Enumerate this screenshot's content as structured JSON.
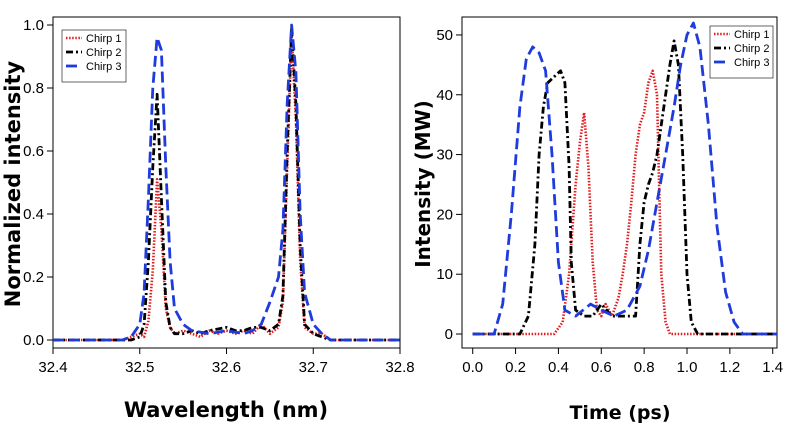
{
  "chart_data": [
    {
      "type": "line",
      "title": "",
      "xlabel": "Wavelength (nm)",
      "ylabel": "Normalized intensity",
      "xlim": [
        32.4,
        32.8
      ],
      "ylim": [
        0,
        1.0
      ],
      "xticks": [
        "32.4",
        "32.5",
        "32.6",
        "32.7",
        "32.8"
      ],
      "yticks": [
        "0.0",
        "0.2",
        "0.4",
        "0.6",
        "0.8",
        "1.0"
      ],
      "legend_position": "top-left",
      "grid": false,
      "series": [
        {
          "name": "Chirp 1",
          "color": "#e41a1c",
          "dash": "dotted",
          "points": [
            [
              32.4,
              0.0
            ],
            [
              32.48,
              0.0
            ],
            [
              32.49,
              0.01
            ],
            [
              32.5,
              0.02
            ],
            [
              32.505,
              0.01
            ],
            [
              32.51,
              0.06
            ],
            [
              32.515,
              0.22
            ],
            [
              32.52,
              0.51
            ],
            [
              32.525,
              0.35
            ],
            [
              32.53,
              0.1
            ],
            [
              32.535,
              0.04
            ],
            [
              32.54,
              0.02
            ],
            [
              32.55,
              0.03
            ],
            [
              32.56,
              0.02
            ],
            [
              32.57,
              0.01
            ],
            [
              32.58,
              0.03
            ],
            [
              32.59,
              0.02
            ],
            [
              32.6,
              0.03
            ],
            [
              32.61,
              0.02
            ],
            [
              32.62,
              0.03
            ],
            [
              32.63,
              0.02
            ],
            [
              32.64,
              0.05
            ],
            [
              32.65,
              0.02
            ],
            [
              32.66,
              0.04
            ],
            [
              32.665,
              0.12
            ],
            [
              32.67,
              0.55
            ],
            [
              32.675,
              0.97
            ],
            [
              32.68,
              0.7
            ],
            [
              32.685,
              0.25
            ],
            [
              32.69,
              0.04
            ],
            [
              32.7,
              0.02
            ],
            [
              32.71,
              0.02
            ],
            [
              32.72,
              0.0
            ],
            [
              32.8,
              0.0
            ]
          ]
        },
        {
          "name": "Chirp 2",
          "color": "#000000",
          "dash": "dashdot",
          "points": [
            [
              32.4,
              0.0
            ],
            [
              32.48,
              0.0
            ],
            [
              32.49,
              0.0
            ],
            [
              32.5,
              0.01
            ],
            [
              32.505,
              0.05
            ],
            [
              32.51,
              0.25
            ],
            [
              32.515,
              0.55
            ],
            [
              32.52,
              0.78
            ],
            [
              32.525,
              0.45
            ],
            [
              32.53,
              0.12
            ],
            [
              32.535,
              0.04
            ],
            [
              32.54,
              0.02
            ],
            [
              32.55,
              0.02
            ],
            [
              32.56,
              0.03
            ],
            [
              32.57,
              0.02
            ],
            [
              32.58,
              0.03
            ],
            [
              32.6,
              0.04
            ],
            [
              32.61,
              0.03
            ],
            [
              32.62,
              0.03
            ],
            [
              32.63,
              0.04
            ],
            [
              32.64,
              0.04
            ],
            [
              32.65,
              0.03
            ],
            [
              32.66,
              0.05
            ],
            [
              32.665,
              0.14
            ],
            [
              32.67,
              0.6
            ],
            [
              32.675,
              0.99
            ],
            [
              32.68,
              0.75
            ],
            [
              32.685,
              0.3
            ],
            [
              32.69,
              0.05
            ],
            [
              32.7,
              0.02
            ],
            [
              32.71,
              0.01
            ],
            [
              32.72,
              0.0
            ],
            [
              32.8,
              0.0
            ]
          ]
        },
        {
          "name": "Chirp 3",
          "color": "#1f3bdb",
          "dash": "longdash",
          "points": [
            [
              32.4,
              0.0
            ],
            [
              32.48,
              0.0
            ],
            [
              32.49,
              0.01
            ],
            [
              32.5,
              0.05
            ],
            [
              32.505,
              0.15
            ],
            [
              32.51,
              0.45
            ],
            [
              32.515,
              0.8
            ],
            [
              32.52,
              0.96
            ],
            [
              32.525,
              0.92
            ],
            [
              32.53,
              0.55
            ],
            [
              32.535,
              0.25
            ],
            [
              32.54,
              0.1
            ],
            [
              32.55,
              0.05
            ],
            [
              32.56,
              0.03
            ],
            [
              32.58,
              0.02
            ],
            [
              32.6,
              0.03
            ],
            [
              32.62,
              0.02
            ],
            [
              32.63,
              0.03
            ],
            [
              32.64,
              0.05
            ],
            [
              32.65,
              0.12
            ],
            [
              32.66,
              0.2
            ],
            [
              32.665,
              0.35
            ],
            [
              32.67,
              0.75
            ],
            [
              32.675,
              1.0
            ],
            [
              32.68,
              0.85
            ],
            [
              32.685,
              0.4
            ],
            [
              32.69,
              0.15
            ],
            [
              32.7,
              0.05
            ],
            [
              32.71,
              0.02
            ],
            [
              32.72,
              0.0
            ],
            [
              32.8,
              0.0
            ]
          ]
        }
      ]
    },
    {
      "type": "line",
      "title": "",
      "xlabel": "Time (ps)",
      "ylabel": "Intensity (MW)",
      "xlim": [
        -0.05,
        1.42
      ],
      "ylim": [
        -1,
        53
      ],
      "xticks": [
        "0.0",
        "0.2",
        "0.4",
        "0.6",
        "0.8",
        "1.0",
        "1.2",
        "1.4"
      ],
      "yticks": [
        "0",
        "10",
        "20",
        "30",
        "40",
        "50"
      ],
      "legend_position": "top-right",
      "grid": false,
      "series": [
        {
          "name": "Chirp 1",
          "color": "#e41a1c",
          "dash": "dotted",
          "points": [
            [
              0.0,
              0.0
            ],
            [
              0.38,
              0.0
            ],
            [
              0.42,
              2
            ],
            [
              0.45,
              10
            ],
            [
              0.48,
              25
            ],
            [
              0.5,
              32
            ],
            [
              0.52,
              37
            ],
            [
              0.54,
              28
            ],
            [
              0.56,
              12
            ],
            [
              0.58,
              4
            ],
            [
              0.6,
              3
            ],
            [
              0.62,
              5
            ],
            [
              0.65,
              3
            ],
            [
              0.68,
              6
            ],
            [
              0.7,
              10
            ],
            [
              0.72,
              15
            ],
            [
              0.74,
              22
            ],
            [
              0.76,
              30
            ],
            [
              0.78,
              35
            ],
            [
              0.8,
              37
            ],
            [
              0.82,
              42
            ],
            [
              0.84,
              44
            ],
            [
              0.86,
              40
            ],
            [
              0.87,
              25
            ],
            [
              0.88,
              10
            ],
            [
              0.9,
              2
            ],
            [
              0.92,
              0.0
            ],
            [
              1.42,
              0.0
            ]
          ]
        },
        {
          "name": "Chirp 2",
          "color": "#000000",
          "dash": "dashdot",
          "points": [
            [
              0.0,
              0.0
            ],
            [
              0.22,
              0.0
            ],
            [
              0.26,
              3
            ],
            [
              0.29,
              15
            ],
            [
              0.31,
              30
            ],
            [
              0.33,
              38
            ],
            [
              0.35,
              42
            ],
            [
              0.38,
              43
            ],
            [
              0.41,
              44
            ],
            [
              0.43,
              42
            ],
            [
              0.45,
              28
            ],
            [
              0.46,
              12
            ],
            [
              0.48,
              4
            ],
            [
              0.52,
              3
            ],
            [
              0.56,
              3
            ],
            [
              0.6,
              5
            ],
            [
              0.65,
              3
            ],
            [
              0.7,
              3
            ],
            [
              0.76,
              3
            ],
            [
              0.78,
              15
            ],
            [
              0.8,
              22
            ],
            [
              0.82,
              25
            ],
            [
              0.84,
              27
            ],
            [
              0.86,
              30
            ],
            [
              0.88,
              35
            ],
            [
              0.9,
              40
            ],
            [
              0.92,
              45
            ],
            [
              0.94,
              49
            ],
            [
              0.96,
              45
            ],
            [
              0.98,
              30
            ],
            [
              1.0,
              10
            ],
            [
              1.02,
              2
            ],
            [
              1.05,
              0.0
            ],
            [
              1.42,
              0.0
            ]
          ]
        },
        {
          "name": "Chirp 3",
          "color": "#1f3bdb",
          "dash": "longdash",
          "points": [
            [
              0.0,
              0.0
            ],
            [
              0.1,
              0.0
            ],
            [
              0.14,
              5
            ],
            [
              0.18,
              20
            ],
            [
              0.22,
              38
            ],
            [
              0.25,
              46
            ],
            [
              0.28,
              48
            ],
            [
              0.31,
              47
            ],
            [
              0.34,
              44
            ],
            [
              0.37,
              30
            ],
            [
              0.4,
              12
            ],
            [
              0.43,
              4
            ],
            [
              0.48,
              3
            ],
            [
              0.55,
              5
            ],
            [
              0.6,
              4
            ],
            [
              0.66,
              3
            ],
            [
              0.72,
              4
            ],
            [
              0.78,
              8
            ],
            [
              0.82,
              14
            ],
            [
              0.86,
              22
            ],
            [
              0.9,
              30
            ],
            [
              0.94,
              38
            ],
            [
              0.97,
              45
            ],
            [
              1.0,
              50
            ],
            [
              1.03,
              52
            ],
            [
              1.06,
              48
            ],
            [
              1.1,
              35
            ],
            [
              1.14,
              18
            ],
            [
              1.18,
              7
            ],
            [
              1.22,
              2
            ],
            [
              1.26,
              0.0
            ],
            [
              1.42,
              0.0
            ]
          ]
        }
      ]
    }
  ]
}
